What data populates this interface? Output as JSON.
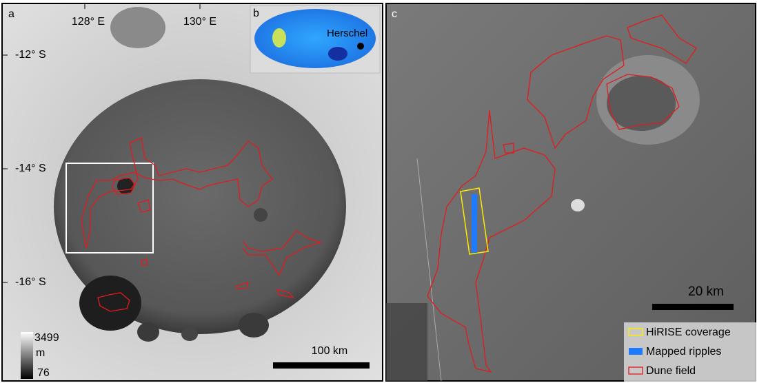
{
  "panel_a": {
    "label": "a",
    "lon_labels": [
      "128° E",
      "130° E"
    ],
    "lat_labels": [
      "-12° S",
      "-14° S",
      "-16° S"
    ],
    "elevation_legend": {
      "max": "3499",
      "unit": "m",
      "min": "76"
    },
    "scale_bar": "100 km"
  },
  "panel_b": {
    "label": "b",
    "place": "Herschel"
  },
  "panel_c": {
    "label": "c",
    "scale_bar": "20 km",
    "legend": [
      "HiRISE coverage",
      "Mapped ripples",
      "Dune field"
    ]
  }
}
